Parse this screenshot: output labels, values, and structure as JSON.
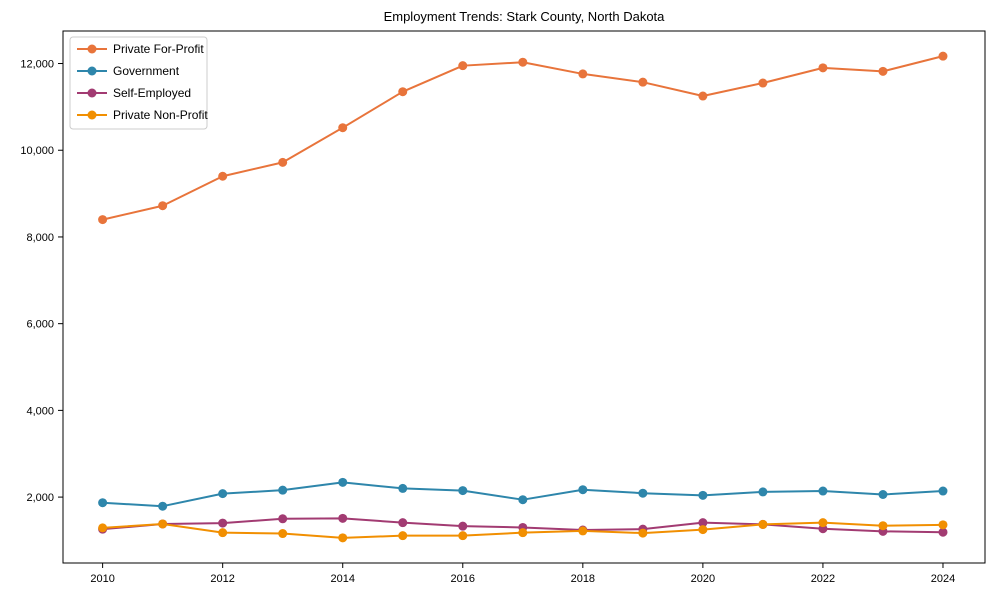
{
  "chart_data": {
    "type": "line",
    "title": "Employment Trends: Stark County, North Dakota",
    "xlabel": "",
    "ylabel": "",
    "grid": false,
    "legend_position": "upper left",
    "x": [
      2010,
      2011,
      2012,
      2013,
      2014,
      2015,
      2016,
      2017,
      2018,
      2019,
      2020,
      2021,
      2022,
      2023,
      2024
    ],
    "series": [
      {
        "name": "Private For-Profit",
        "color": "#e8743b",
        "values": [
          8400,
          8720,
          9400,
          9720,
          10520,
          11350,
          11950,
          12030,
          11760,
          11570,
          11250,
          11550,
          11900,
          11820,
          12170
        ]
      },
      {
        "name": "Government",
        "color": "#2e86ab",
        "values": [
          1870,
          1790,
          2080,
          2160,
          2340,
          2200,
          2150,
          1940,
          2170,
          2090,
          2040,
          2120,
          2140,
          2060,
          2140
        ]
      },
      {
        "name": "Self-Employed",
        "color": "#a23b72",
        "values": [
          1260,
          1380,
          1400,
          1500,
          1510,
          1410,
          1330,
          1300,
          1240,
          1260,
          1410,
          1370,
          1270,
          1210,
          1190
        ]
      },
      {
        "name": "Private Non-Profit",
        "color": "#f18f01",
        "values": [
          1290,
          1380,
          1180,
          1160,
          1060,
          1110,
          1110,
          1180,
          1220,
          1170,
          1250,
          1370,
          1410,
          1340,
          1360
        ]
      }
    ],
    "xticks": [
      2010,
      2012,
      2014,
      2016,
      2018,
      2020,
      2022,
      2024
    ],
    "xticklabels": [
      "2010",
      "2012",
      "2014",
      "2016",
      "2018",
      "2020",
      "2022",
      "2024"
    ],
    "yticks": [
      2000,
      4000,
      6000,
      8000,
      10000,
      12000
    ],
    "yticklabels": [
      "2,000",
      "4,000",
      "6,000",
      "8,000",
      "10,000",
      "12,000"
    ],
    "xlim": [
      2009.34,
      2024.7
    ],
    "ylim": [
      480,
      12750
    ],
    "axis_color": "#000000",
    "background_color": "#ffffff",
    "legend_border_color": "#cccccc"
  }
}
